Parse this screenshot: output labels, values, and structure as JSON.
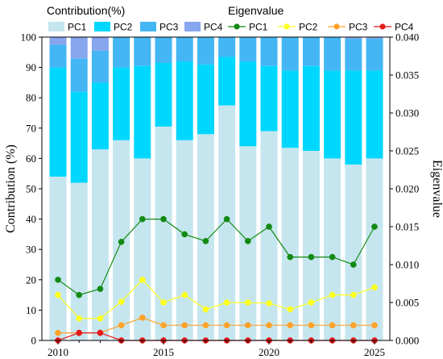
{
  "chart_data": {
    "type": "bar+line",
    "years": [
      2010,
      2011,
      2012,
      2013,
      2014,
      2015,
      2016,
      2017,
      2018,
      2019,
      2020,
      2021,
      2022,
      2023,
      2024,
      2025
    ],
    "x_ticks": [
      2010,
      2015,
      2020,
      2025
    ],
    "bar_series": [
      {
        "name": "PC1",
        "color": "#c5e6ee",
        "values": [
          54,
          52,
          63,
          66,
          60,
          70.5,
          66,
          68,
          77.5,
          64,
          69,
          63.5,
          62.5,
          60,
          58,
          60
        ]
      },
      {
        "name": "PC2",
        "color": "#00d7ff",
        "values": [
          36,
          30,
          22,
          24,
          30.5,
          21,
          26,
          23,
          16,
          28,
          21.5,
          25.5,
          28,
          29,
          31,
          29
        ]
      },
      {
        "name": "PC3",
        "color": "#44b6f4",
        "values": [
          7.5,
          11,
          10.5,
          10,
          9.5,
          8.5,
          8,
          9,
          6.5,
          8,
          9.5,
          11,
          9.5,
          11,
          10.5,
          10.5
        ]
      },
      {
        "name": "PC4",
        "color": "#88a6ee",
        "values": [
          2.5,
          7,
          4.5,
          0,
          0,
          0,
          0,
          0,
          0,
          0,
          0,
          0,
          0,
          0,
          0.5,
          0.5
        ]
      }
    ],
    "line_series": [
      {
        "name": "PC1",
        "color": "#138a13",
        "values": [
          0.008,
          0.006,
          0.0068,
          0.013,
          0.016,
          0.016,
          0.014,
          0.0131,
          0.016,
          0.0131,
          0.015,
          0.011,
          0.011,
          0.011,
          0.01,
          0.015
        ]
      },
      {
        "name": "PC2",
        "color": "#ffff22",
        "values": [
          0.006,
          0.0029,
          0.0029,
          0.0051,
          0.008,
          0.005,
          0.006,
          0.0041,
          0.005,
          0.005,
          0.0049,
          0.0041,
          0.005,
          0.006,
          0.006,
          0.007
        ]
      },
      {
        "name": "PC3",
        "color": "#ffa22a",
        "values": [
          0.001,
          0.001,
          0.001,
          0.002,
          0.003,
          0.002,
          0.002,
          0.002,
          0.002,
          0.002,
          0.002,
          0.002,
          0.002,
          0.002,
          0.002,
          0.002
        ]
      },
      {
        "name": "PC4",
        "color": "#e51a1a",
        "values": [
          0,
          0.001,
          0.001,
          0,
          0,
          0,
          0,
          0,
          0,
          0,
          0,
          0,
          0,
          0,
          0,
          0
        ]
      }
    ],
    "left_axis": {
      "label": "Contribution (%)",
      "ylim": [
        0,
        100
      ],
      "ticks": [
        0,
        10,
        20,
        30,
        40,
        50,
        60,
        70,
        80,
        90,
        100
      ]
    },
    "right_axis": {
      "label": "Eigenvalue",
      "ylim": [
        0,
        0.04
      ],
      "ticks": [
        "0.000",
        "0.005",
        "0.010",
        "0.015",
        "0.020",
        "0.025",
        "0.030",
        "0.035",
        "0.040"
      ]
    },
    "legend": {
      "bar_header": "Contribution(%)",
      "line_header": "Eigenvalue",
      "placement": "top"
    },
    "grid": false
  }
}
